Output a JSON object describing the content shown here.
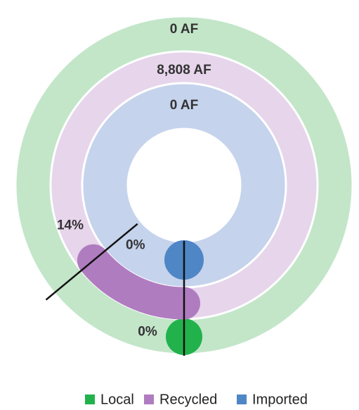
{
  "chart_data": {
    "type": "radial_bar",
    "ylim": [
      0,
      100
    ],
    "series": [
      {
        "name": "Local",
        "color": "#22b24c",
        "track_color": "#c3e6c9",
        "values": [
          0
        ],
        "value_labels": [
          "0%"
        ],
        "amounts": [
          0
        ],
        "amount_labels": [
          "0 AF"
        ]
      },
      {
        "name": "Recycled",
        "color": "#b07cc0",
        "track_color": "#e6d5eb",
        "values": [
          14
        ],
        "value_labels": [
          "14%"
        ],
        "amounts": [
          8808
        ],
        "amount_labels": [
          "8,808 AF"
        ]
      },
      {
        "name": "Imported",
        "color": "#4f86c6",
        "track_color": "#c5d3ec",
        "values": [
          0
        ],
        "value_labels": [
          "0%"
        ],
        "amounts": [
          0
        ],
        "amount_labels": [
          "0 AF"
        ]
      }
    ],
    "legend": "bottom"
  }
}
